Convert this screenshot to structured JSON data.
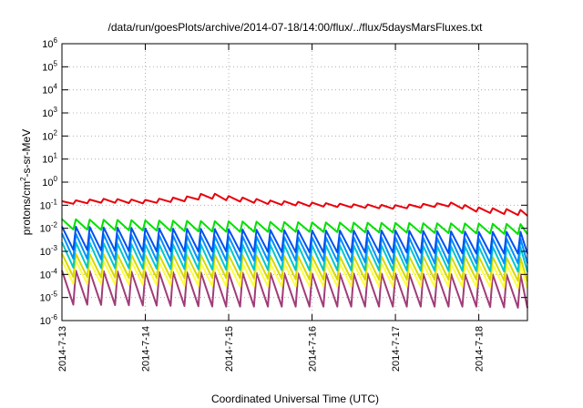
{
  "chart_data": {
    "type": "line",
    "title": "/data/run/goesPlots/archive/2014-07-18/14:00/flux/../flux/5daysMarsFluxes.txt",
    "xlabel": "Coordinated Universal Time (UTC)",
    "ylabel": {
      "pre": "protons/cm",
      "sup": "2",
      "post": "-s-sr-MeV"
    },
    "yscale": "log",
    "ylim": [
      1e-06,
      1000000.0
    ],
    "yticks": [
      {
        "base": "10",
        "exp": "-6"
      },
      {
        "base": "10",
        "exp": "-5"
      },
      {
        "base": "10",
        "exp": "-4"
      },
      {
        "base": "10",
        "exp": "-3"
      },
      {
        "base": "10",
        "exp": "-2"
      },
      {
        "base": "10",
        "exp": "-1"
      },
      {
        "base": "10",
        "exp": "0"
      },
      {
        "base": "10",
        "exp": "1"
      },
      {
        "base": "10",
        "exp": "2"
      },
      {
        "base": "10",
        "exp": "3"
      },
      {
        "base": "10",
        "exp": "4"
      },
      {
        "base": "10",
        "exp": "5"
      },
      {
        "base": "10",
        "exp": "6"
      }
    ],
    "xlim": [
      "2014-07-13T00:00",
      "2014-07-18T14:00"
    ],
    "xticks": [
      "2014-7-13",
      "2014-7-14",
      "2014-7-15",
      "2014-7-16",
      "2014-7-17",
      "2014-7-18"
    ],
    "grid": true,
    "legend": "none",
    "series": [
      {
        "color": "#e8000b",
        "sawtooth_per_day": 6,
        "x": [
          "2014-07-13T00:00",
          "2014-07-13T12:00",
          "2014-07-14T00:00",
          "2014-07-14T12:00",
          "2014-07-14T18:00",
          "2014-07-15T00:00",
          "2014-07-15T12:00",
          "2014-07-16T00:00",
          "2014-07-16T12:00",
          "2014-07-17T00:00",
          "2014-07-17T16:00",
          "2014-07-18T00:00",
          "2014-07-18T14:00"
        ],
        "upper": [
          0.15,
          0.19,
          0.17,
          0.24,
          0.35,
          0.25,
          0.16,
          0.13,
          0.11,
          0.1,
          0.13,
          0.08,
          0.06
        ],
        "lower": [
          0.11,
          0.13,
          0.12,
          0.15,
          0.2,
          0.16,
          0.11,
          0.09,
          0.08,
          0.07,
          0.09,
          0.05,
          0.035
        ]
      },
      {
        "color": "#00e000",
        "sawtooth_per_day": 6,
        "x": [
          "2014-07-13T00:00",
          "2014-07-14T00:00",
          "2014-07-15T00:00",
          "2014-07-16T00:00",
          "2014-07-17T00:00",
          "2014-07-18T00:00",
          "2014-07-18T14:00"
        ],
        "upper": [
          0.025,
          0.022,
          0.02,
          0.018,
          0.017,
          0.016,
          0.015
        ],
        "lower": [
          0.009,
          0.008,
          0.007,
          0.007,
          0.0065,
          0.006,
          0.0055
        ]
      },
      {
        "color": "#0050f0",
        "sawtooth_per_day": 6,
        "x": [
          "2014-07-13T00:00",
          "2014-07-14T00:00",
          "2014-07-15T00:00",
          "2014-07-16T00:00",
          "2014-07-17T00:00",
          "2014-07-18T00:00",
          "2014-07-18T14:00"
        ],
        "upper": [
          0.012,
          0.01,
          0.009,
          0.008,
          0.008,
          0.007,
          0.007
        ],
        "lower": [
          0.0012,
          0.001,
          0.001,
          0.0009,
          0.0009,
          0.0008,
          0.0008
        ]
      },
      {
        "color": "#0090ff",
        "sawtooth_per_day": 6,
        "x": [
          "2014-07-13T00:00",
          "2014-07-14T00:00",
          "2014-07-15T00:00",
          "2014-07-16T00:00",
          "2014-07-17T00:00",
          "2014-07-18T00:00",
          "2014-07-18T14:00"
        ],
        "upper": [
          0.006,
          0.005,
          0.0045,
          0.004,
          0.004,
          0.0035,
          0.0035
        ],
        "lower": [
          0.0005,
          0.0004,
          0.0004,
          0.0004,
          0.0003,
          0.0003,
          0.0003
        ]
      },
      {
        "color": "#00c8c8",
        "sawtooth_per_day": 6,
        "x": [
          "2014-07-13T00:00",
          "2014-07-14T00:00",
          "2014-07-15T00:00",
          "2014-07-16T00:00",
          "2014-07-17T00:00",
          "2014-07-18T00:00",
          "2014-07-18T14:00"
        ],
        "upper": [
          0.0025,
          0.002,
          0.002,
          0.0018,
          0.0018,
          0.0016,
          0.0015
        ],
        "lower": [
          0.0002,
          0.00018,
          0.00016,
          0.00015,
          0.00015,
          0.00014,
          0.00013
        ]
      },
      {
        "color": "#d8d800",
        "sawtooth_per_day": 6,
        "x": [
          "2014-07-13T00:00",
          "2014-07-14T00:00",
          "2014-07-15T00:00",
          "2014-07-16T00:00",
          "2014-07-17T00:00",
          "2014-07-18T00:00",
          "2014-07-18T14:00"
        ],
        "upper": [
          0.0008,
          0.0007,
          0.0007,
          0.0006,
          0.0006,
          0.0006,
          0.0005
        ],
        "lower": [
          8e-05,
          7e-05,
          7e-05,
          6e-05,
          6e-05,
          6e-05,
          5e-05
        ]
      },
      {
        "color": "#ffff40",
        "sawtooth_per_day": 6,
        "x": [
          "2014-07-13T00:00",
          "2014-07-14T00:00",
          "2014-07-15T00:00",
          "2014-07-16T00:00",
          "2014-07-17T00:00",
          "2014-07-18T00:00",
          "2014-07-18T14:00"
        ],
        "upper": [
          0.0004,
          0.00035,
          0.0003,
          0.0003,
          0.0003,
          0.00028,
          0.00025
        ],
        "lower": [
          4e-05,
          3.5e-05,
          3e-05,
          3e-05,
          3e-05,
          2.8e-05,
          2.5e-05
        ]
      },
      {
        "color": "#a03c78",
        "sawtooth_per_day": 6,
        "x": [
          "2014-07-13T00:00",
          "2014-07-14T00:00",
          "2014-07-15T00:00",
          "2014-07-16T00:00",
          "2014-07-17T00:00",
          "2014-07-18T00:00",
          "2014-07-18T14:00"
        ],
        "upper": [
          0.00015,
          0.00013,
          0.00012,
          0.00011,
          0.00011,
          0.0001,
          0.0001
        ],
        "lower": [
          5e-06,
          4.5e-06,
          4e-06,
          4e-06,
          4e-06,
          4e-06,
          3.5e-06
        ]
      }
    ]
  }
}
